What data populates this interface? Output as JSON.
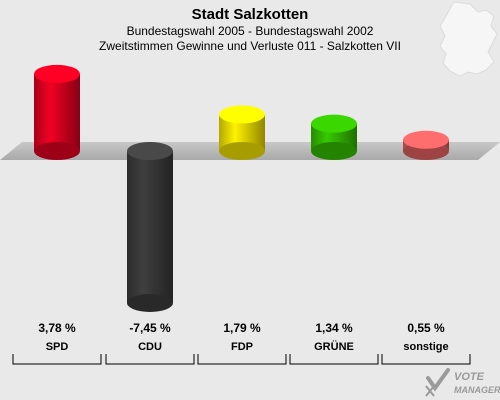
{
  "header": {
    "title": "Stadt Salzkotten",
    "subtitle": "Bundestagswahl 2005 - Bundestagswahl 2002",
    "subtitle2": "Zweitstimmen Gewinne und Verluste 011 - Salzkotten VII"
  },
  "chart_data": {
    "type": "bar",
    "title": "Stadt Salzkotten",
    "subtitle": "Bundestagswahl 2005 - Bundestagswahl 2002 / Zweitstimmen Gewinne und Verluste 011 - Salzkotten VII",
    "categories": [
      "SPD",
      "CDU",
      "FDP",
      "GRÜNE",
      "sonstige"
    ],
    "values": [
      3.78,
      -7.45,
      1.79,
      1.34,
      0.55
    ],
    "value_labels": [
      "3,78 %",
      "-7,45 %",
      "1,79 %",
      "1,34 %",
      "0,55 %"
    ],
    "colors": [
      "#e00020",
      "#3a3a3a",
      "#f0e000",
      "#33bb00",
      "#e06060"
    ],
    "unit": "%",
    "ylim": [
      -8,
      4
    ],
    "grid": false,
    "legend": "none"
  },
  "watermark": {
    "line1": "VOTE",
    "line2": "MANAGER"
  },
  "colors": {
    "background": "#e9e9e9",
    "baseline": "#b8b8b8"
  }
}
